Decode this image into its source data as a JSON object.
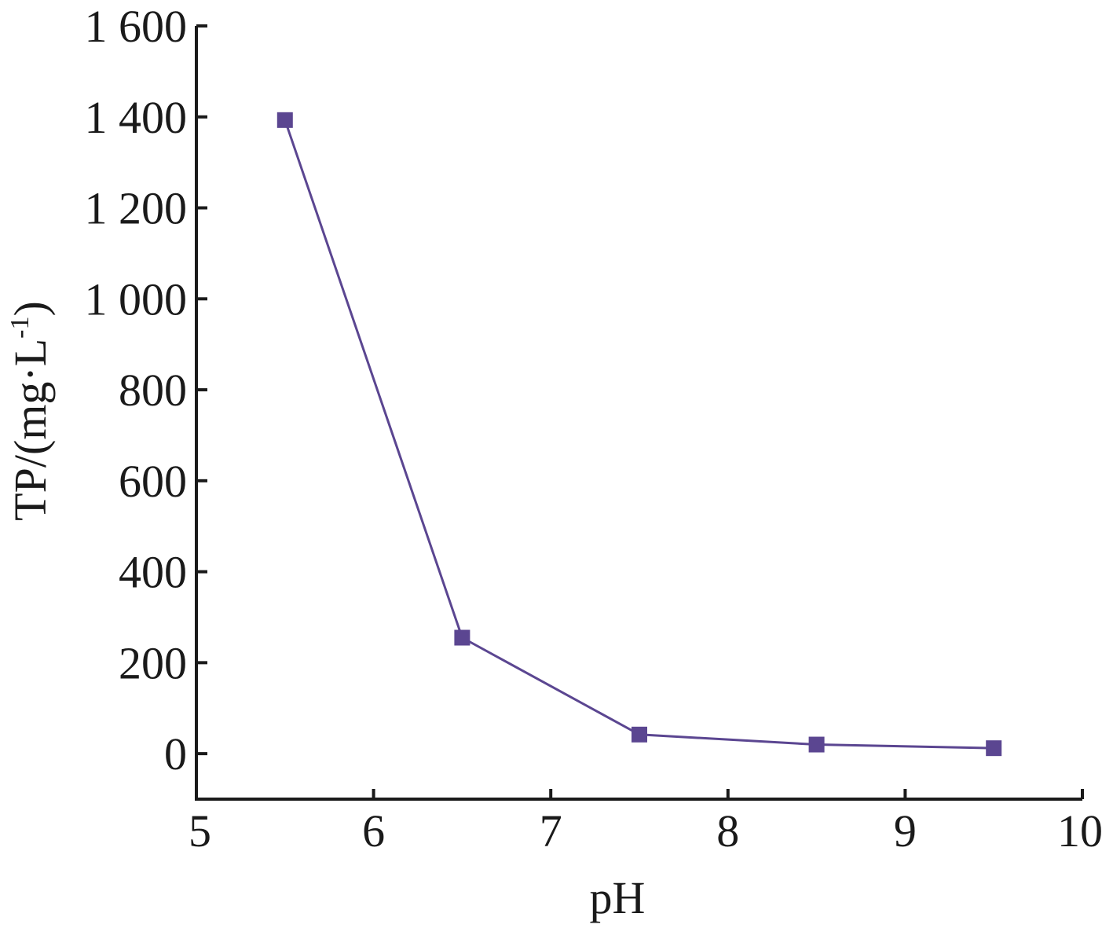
{
  "chart_data": {
    "type": "line",
    "title": "",
    "xlabel": "pH",
    "ylabel": "TP/(mg·L",
    "ylabel_superscript": "-1",
    "ylabel_close": ")",
    "xlim": [
      5,
      10
    ],
    "ylim": [
      -100,
      1600
    ],
    "x_ticks": [
      5,
      6,
      7,
      8,
      9,
      10
    ],
    "x_tick_labels": [
      "5",
      "6",
      "7",
      "8",
      "9",
      "10"
    ],
    "y_ticks": [
      0,
      200,
      400,
      600,
      800,
      1000,
      1200,
      1400,
      1600
    ],
    "y_tick_labels": [
      "0",
      "200",
      "400",
      "600",
      "800",
      "1 000",
      "1 200",
      "1 400",
      "1 600"
    ],
    "grid": false,
    "legend": "none",
    "series": [
      {
        "marker": "square",
        "color": "#5b4691",
        "x": [
          5.5,
          6.5,
          7.5,
          8.5,
          9.5
        ],
        "y": [
          1393,
          255,
          42,
          20,
          12
        ]
      }
    ]
  }
}
